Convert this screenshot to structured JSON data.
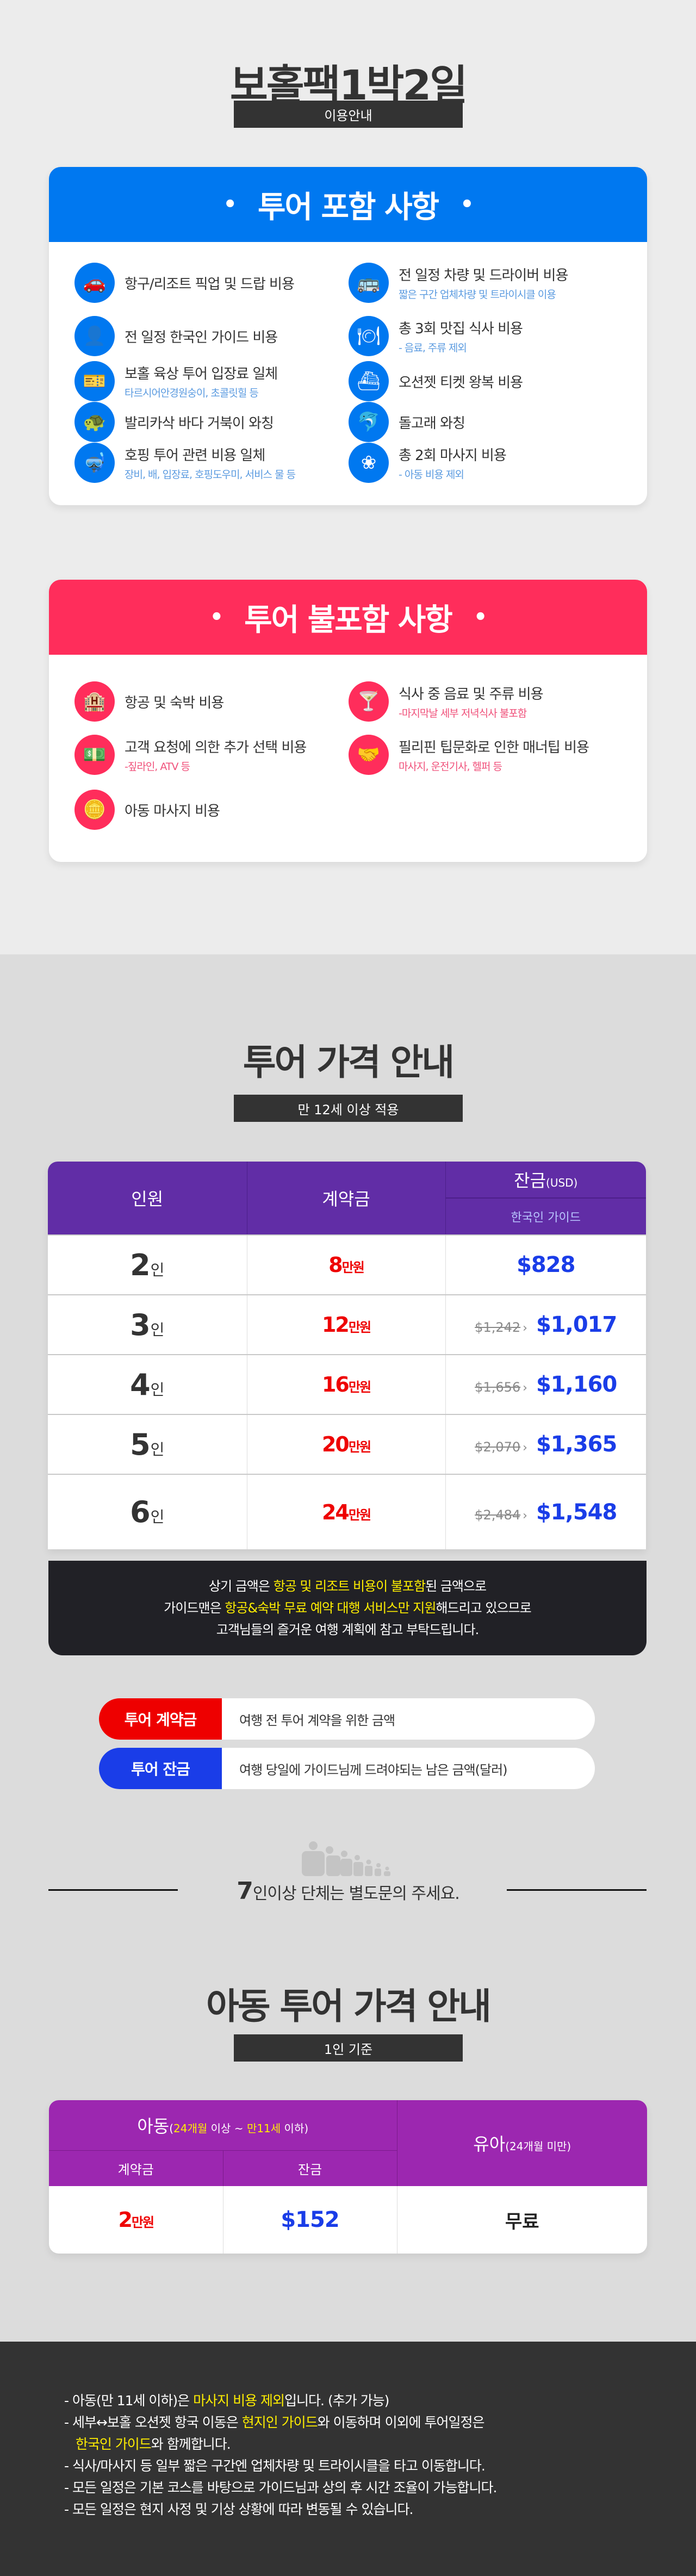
{
  "header": {
    "title": "보홀팩1박2일",
    "subtitle": "이용안내"
  },
  "included": {
    "title": "투어 포함 사항",
    "color": "#0078f0",
    "sub_color": "#5b9be0",
    "items": [
      {
        "icon": "car-icon",
        "glyph": "🚗",
        "main": "항구/리조트 픽업 및 드랍 비용",
        "sub": ""
      },
      {
        "icon": "bus-icon",
        "glyph": "🚌",
        "main": "전 일정 차량 및 드라이버 비용",
        "sub": "짧은 구간 업체차량 및 트라이시클 이용"
      },
      {
        "icon": "guide-icon",
        "glyph": "👤",
        "main": "전 일정 한국인 가이드 비용",
        "sub": ""
      },
      {
        "icon": "meal-icon",
        "glyph": "🍽",
        "main": "총 3회 맛집 식사 비용",
        "sub": "- 음료, 주류 제외"
      },
      {
        "icon": "ticket-icon",
        "glyph": "🎫",
        "main": "보홀 육상 투어 입장료 일체",
        "sub": "타르시어안경원숭이, 초콜릿힐 등"
      },
      {
        "icon": "ferry-icon",
        "glyph": "⛴",
        "main": "오션젯 티켓 왕복 비용",
        "sub": ""
      },
      {
        "icon": "turtle-icon",
        "glyph": "🐢",
        "main": "발리카삭 바다 거북이 와칭",
        "sub": ""
      },
      {
        "icon": "dolphin-icon",
        "glyph": "🐬",
        "main": "돌고래 와칭",
        "sub": ""
      },
      {
        "icon": "snorkel-icon",
        "glyph": "🤿",
        "main": "호핑 투어 관련 비용 일체",
        "sub": "장비, 배, 입장료, 호핑도우미, 서비스 물 등"
      },
      {
        "icon": "lotus-icon",
        "glyph": "❀",
        "main": "총 2회 마사지 비용",
        "sub": "- 아동 비용 제외"
      }
    ]
  },
  "excluded": {
    "title": "투어 불포함 사항",
    "color": "#ff2d5b",
    "sub_color": "#f0507a",
    "items": [
      {
        "icon": "hotel-icon",
        "glyph": "🏨",
        "main": "항공 및 숙박 비용",
        "sub": ""
      },
      {
        "icon": "cocktail-icon",
        "glyph": "🍸",
        "main": "식사 중 음료 및 주류 비용",
        "sub": "-마지막날 세부 저녁식사 불포함"
      },
      {
        "icon": "money-icon",
        "glyph": "💵",
        "main": "고객 요청에 의한 추가 선택 비용",
        "sub": "-짚라인, ATV 등"
      },
      {
        "icon": "tip-icon",
        "glyph": "🤝",
        "main": "필리핀 팁문화로 인한 매너팁 비용",
        "sub": "마사지, 운전기사, 헬퍼 등"
      },
      {
        "icon": "coins-icon",
        "glyph": "🪙",
        "main": "아동 마사지 비용",
        "sub": ""
      }
    ]
  },
  "price": {
    "title": "투어 가격 안내",
    "subtitle": "만 12세 이상 적용",
    "headers": {
      "people": "인원",
      "deposit": "계약금",
      "balance": "잔금",
      "balance_unit": "(USD)",
      "guide": "한국인 가이드"
    },
    "person_unit": "인",
    "deposit_unit": "만원",
    "rows": [
      {
        "people": "2",
        "deposit": "8",
        "original": "",
        "final": "$828"
      },
      {
        "people": "3",
        "deposit": "12",
        "original": "$1,242",
        "final": "$1,017"
      },
      {
        "people": "4",
        "deposit": "16",
        "original": "$1,656",
        "final": "$1,160"
      },
      {
        "people": "5",
        "deposit": "20",
        "original": "$2,070",
        "final": "$1,365"
      },
      {
        "people": "6",
        "deposit": "24",
        "original": "$2,484",
        "final": "$1,548"
      }
    ],
    "colors": {
      "header": "#612da6",
      "deposit": "#ee0000",
      "final": "#1a3de8"
    }
  },
  "note_lines": [
    [
      {
        "t": "상기 금액은 "
      },
      {
        "t": "항공 및 리조트 비용이 불포함",
        "hl": true
      },
      {
        "t": "된 금액으로"
      }
    ],
    [
      {
        "t": "가이드맨은 "
      },
      {
        "t": "항공&숙박 무료 예약 대행 서비스만 지원",
        "hl": true
      },
      {
        "t": "해드리고 있으므로"
      }
    ],
    [
      {
        "t": "고객님들의 즐거운 여행 계획에 참고 부탁드립니다."
      }
    ]
  ],
  "legend": [
    {
      "tag": "투어 계약금",
      "desc": "여행 전 투어 계약을 위한 금액",
      "color": "#ee0000"
    },
    {
      "tag": "투어 잔금",
      "desc": "여행 당일에 가이드님께 드려야되는 남은 금액(달러)",
      "color": "#1a3de8"
    }
  ],
  "group": {
    "number": "7",
    "text": "인이상 단체는 별도문의 주세요."
  },
  "child": {
    "title": "아동 투어 가격 안내",
    "subtitle": "1인 기준",
    "child_label": "아동",
    "child_range": [
      {
        "t": "("
      },
      {
        "t": "24개월",
        "hl": true
      },
      {
        "t": " 이상 ~ "
      },
      {
        "t": "만11세",
        "hl": true
      },
      {
        "t": " 이하)"
      }
    ],
    "infant_label": "유아",
    "infant_range": "(24개월 미만)",
    "deposit_label": "계약금",
    "balance_label": "잔금",
    "deposit": "2",
    "deposit_unit": "만원",
    "balance": "$152",
    "infant_price": "무료",
    "color": "#9c27b0"
  },
  "footer_lines": [
    [
      {
        "t": "- 아동(만 11세 이하)은 "
      },
      {
        "t": "마사지 비용 제외",
        "hl": true
      },
      {
        "t": "입니다. (추가 가능)"
      }
    ],
    [
      {
        "t": "- 세부↔보홀 오션젯 항국 이동은 "
      },
      {
        "t": "현지인 가이드",
        "hl": true
      },
      {
        "t": "와 이동하며 이외에 투어일정은"
      }
    ],
    [
      {
        "t": "   "
      },
      {
        "t": "한국인 가이드",
        "hl": true
      },
      {
        "t": "와 함께합니다."
      }
    ],
    [
      {
        "t": "- 식사/마사지 등 일부 짧은 구간엔 업체차량 및 트라이시클을 타고 이동합니다."
      }
    ],
    [
      {
        "t": "- 모든 일정은 기본 코스를 바탕으로 가이드님과 상의 후 시간 조율이 가능합니다."
      }
    ],
    [
      {
        "t": "- 모든 일정은 현지 사정 및 기상 상황에 따라 변동될 수 있습니다."
      }
    ]
  ]
}
